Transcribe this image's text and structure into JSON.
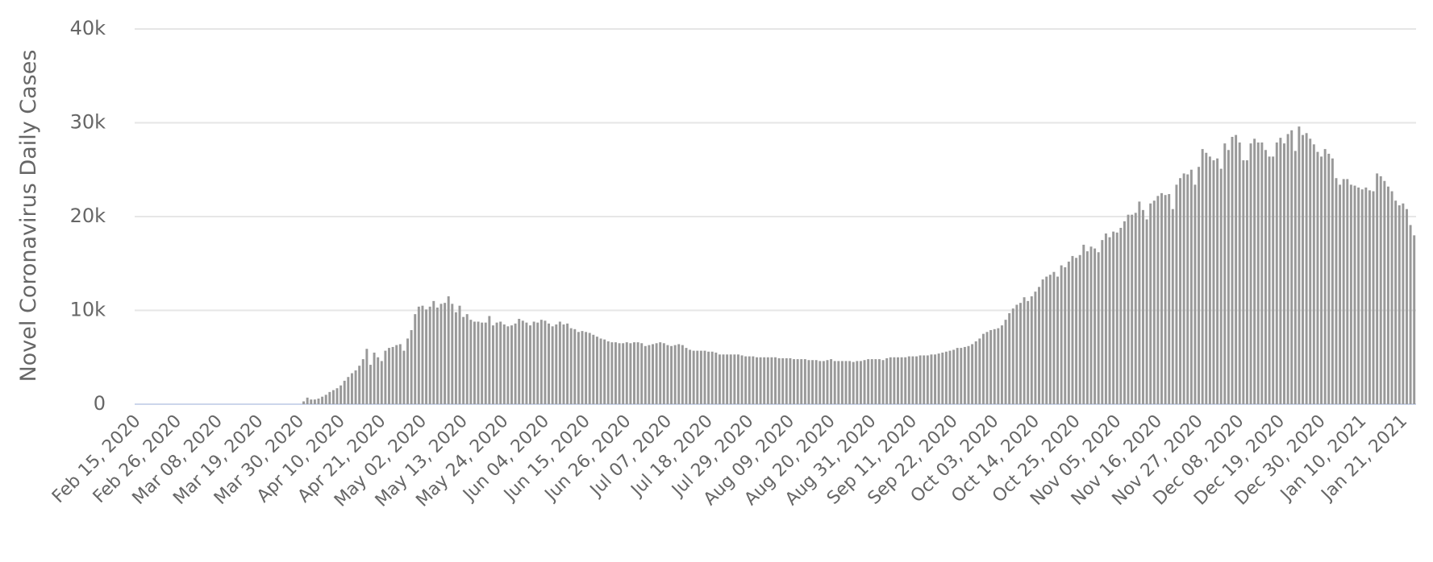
{
  "chart_data": {
    "type": "bar",
    "y_label": "Novel Coronavirus Daily Cases",
    "color": "#999999",
    "grid": true,
    "ylim": [
      0,
      40000
    ],
    "yticks": [
      0,
      {
        "value": 10000,
        "label": "10k"
      },
      {
        "value": 20000,
        "label": "20k"
      },
      {
        "value": 30000,
        "label": "30k"
      },
      {
        "value": 40000,
        "label": "40k"
      }
    ],
    "categories": [
      "Feb 15, 2020",
      null,
      null,
      null,
      null,
      null,
      null,
      null,
      null,
      null,
      null,
      "Feb 26, 2020",
      null,
      null,
      null,
      null,
      null,
      null,
      null,
      null,
      null,
      null,
      "Mar 08, 2020",
      null,
      null,
      null,
      null,
      null,
      null,
      null,
      null,
      null,
      null,
      "Mar 19, 2020",
      null,
      null,
      null,
      null,
      null,
      null,
      null,
      null,
      null,
      null,
      "Mar 30, 2020",
      null,
      null,
      null,
      null,
      null,
      null,
      null,
      null,
      null,
      null,
      "Apr 10, 2020",
      null,
      null,
      null,
      null,
      null,
      null,
      null,
      null,
      null,
      null,
      "Apr 21, 2020",
      null,
      null,
      null,
      null,
      null,
      null,
      null,
      null,
      null,
      null,
      "May 02, 2020",
      null,
      null,
      null,
      null,
      null,
      null,
      null,
      null,
      null,
      null,
      "May 13, 2020",
      null,
      null,
      null,
      null,
      null,
      null,
      null,
      null,
      null,
      null,
      "May 24, 2020",
      null,
      null,
      null,
      null,
      null,
      null,
      null,
      null,
      null,
      null,
      "Jun 04, 2020",
      null,
      null,
      null,
      null,
      null,
      null,
      null,
      null,
      null,
      null,
      "Jun 15, 2020",
      null,
      null,
      null,
      null,
      null,
      null,
      null,
      null,
      null,
      null,
      "Jun 26, 2020",
      null,
      null,
      null,
      null,
      null,
      null,
      null,
      null,
      null,
      null,
      "Jul 07, 2020",
      null,
      null,
      null,
      null,
      null,
      null,
      null,
      null,
      null,
      null,
      "Jul 18, 2020",
      null,
      null,
      null,
      null,
      null,
      null,
      null,
      null,
      null,
      null,
      "Jul 29, 2020",
      null,
      null,
      null,
      null,
      null,
      null,
      null,
      null,
      null,
      null,
      "Aug 09, 2020",
      null,
      null,
      null,
      null,
      null,
      null,
      null,
      null,
      null,
      null,
      "Aug 20, 2020",
      null,
      null,
      null,
      null,
      null,
      null,
      null,
      null,
      null,
      null,
      "Aug 31, 2020",
      null,
      null,
      null,
      null,
      null,
      null,
      null,
      null,
      null,
      null,
      "Sep 11, 2020",
      null,
      null,
      null,
      null,
      null,
      null,
      null,
      null,
      null,
      null,
      "Sep 22, 2020",
      null,
      null,
      null,
      null,
      null,
      null,
      null,
      null,
      null,
      null,
      "Oct 03, 2020",
      null,
      null,
      null,
      null,
      null,
      null,
      null,
      null,
      null,
      null,
      "Oct 14, 2020",
      null,
      null,
      null,
      null,
      null,
      null,
      null,
      null,
      null,
      null,
      "Oct 25, 2020",
      null,
      null,
      null,
      null,
      null,
      null,
      null,
      null,
      null,
      null,
      "Nov 05, 2020",
      null,
      null,
      null,
      null,
      null,
      null,
      null,
      null,
      null,
      null,
      "Nov 16, 2020",
      null,
      null,
      null,
      null,
      null,
      null,
      null,
      null,
      null,
      null,
      "Nov 27, 2020",
      null,
      null,
      null,
      null,
      null,
      null,
      null,
      null,
      null,
      null,
      "Dec 08, 2020",
      null,
      null,
      null,
      null,
      null,
      null,
      null,
      null,
      null,
      null,
      "Dec 19, 2020",
      null,
      null,
      null,
      null,
      null,
      null,
      null,
      null,
      null,
      null,
      "Dec 30, 2020",
      null,
      null,
      null,
      null,
      null,
      null,
      null,
      null,
      null,
      null,
      "Jan 10, 2021",
      null,
      null,
      null,
      null,
      null,
      null,
      null,
      null,
      null,
      null,
      "Jan 21, 2021",
      null,
      null,
      null
    ],
    "values": [
      0,
      0,
      0,
      0,
      0,
      0,
      0,
      0,
      0,
      0,
      0,
      0,
      0,
      0,
      0,
      0,
      0,
      0,
      0,
      0,
      0,
      0,
      0,
      0,
      0,
      0,
      0,
      0,
      0,
      0,
      0,
      0,
      0,
      0,
      0,
      0,
      0,
      0,
      0,
      0,
      0,
      0,
      0,
      0,
      0,
      300,
      700,
      500,
      500,
      600,
      800,
      1000,
      1300,
      1500,
      1700,
      2000,
      2500,
      2900,
      3300,
      3600,
      4100,
      4800,
      5900,
      4200,
      5500,
      5000,
      4600,
      5700,
      6000,
      6100,
      6300,
      6400,
      5700,
      7000,
      7900,
      9600,
      10400,
      10500,
      10100,
      10400,
      11000,
      10300,
      10700,
      10800,
      11500,
      10700,
      9800,
      10500,
      9300,
      9600,
      9000,
      8800,
      8800,
      8700,
      8700,
      9400,
      8400,
      8700,
      8800,
      8500,
      8300,
      8400,
      8600,
      9100,
      8900,
      8700,
      8400,
      8800,
      8700,
      9000,
      8900,
      8600,
      8300,
      8500,
      8800,
      8500,
      8600,
      8100,
      8000,
      7700,
      7800,
      7700,
      7600,
      7400,
      7200,
      7000,
      6900,
      6700,
      6600,
      6600,
      6500,
      6500,
      6600,
      6500,
      6600,
      6600,
      6500,
      6200,
      6300,
      6400,
      6500,
      6600,
      6500,
      6300,
      6200,
      6300,
      6400,
      6300,
      6000,
      5800,
      5700,
      5700,
      5700,
      5700,
      5600,
      5600,
      5500,
      5300,
      5300,
      5300,
      5300,
      5300,
      5300,
      5200,
      5100,
      5100,
      5100,
      5000,
      5000,
      5000,
      5000,
      5000,
      5000,
      4900,
      4900,
      4900,
      4900,
      4800,
      4800,
      4800,
      4800,
      4700,
      4700,
      4700,
      4600,
      4600,
      4700,
      4800,
      4600,
      4600,
      4600,
      4600,
      4600,
      4500,
      4600,
      4600,
      4700,
      4800,
      4800,
      4800,
      4800,
      4700,
      4900,
      5000,
      5000,
      5000,
      5000,
      5000,
      5100,
      5100,
      5100,
      5200,
      5200,
      5200,
      5300,
      5300,
      5400,
      5500,
      5600,
      5700,
      5800,
      6000,
      6000,
      6100,
      6200,
      6400,
      6700,
      7000,
      7500,
      7700,
      7900,
      8000,
      8100,
      8400,
      9000,
      9700,
      10200,
      10600,
      10800,
      11400,
      11000,
      11500,
      12000,
      12500,
      13300,
      13600,
      13800,
      14100,
      13600,
      14800,
      14600,
      15200,
      15800,
      15600,
      15900,
      17000,
      16300,
      16800,
      16600,
      16200,
      17500,
      18200,
      17800,
      18400,
      18300,
      18800,
      19500,
      20200,
      20200,
      20400,
      21600,
      20700,
      19700,
      21400,
      21700,
      22200,
      22500,
      22300,
      22400,
      20800,
      23400,
      24100,
      24600,
      24500,
      25000,
      23400,
      25300,
      27200,
      26800,
      26400,
      26000,
      26200,
      25100,
      27800,
      27100,
      28500,
      28700,
      27900,
      26000,
      26000,
      27800,
      28300,
      27900,
      27900,
      27100,
      26400,
      26400,
      27900,
      28400,
      27800,
      28800,
      29200,
      27000,
      29600,
      28700,
      28900,
      28300,
      27700,
      26900,
      26400,
      27200,
      26700,
      26200,
      24100,
      23400,
      24000,
      24000,
      23400,
      23300,
      23100,
      22900,
      23100,
      22800,
      22700,
      24600,
      24300,
      23800,
      23200,
      22700,
      21700,
      21200,
      21400,
      20800,
      19100,
      18000
    ]
  }
}
